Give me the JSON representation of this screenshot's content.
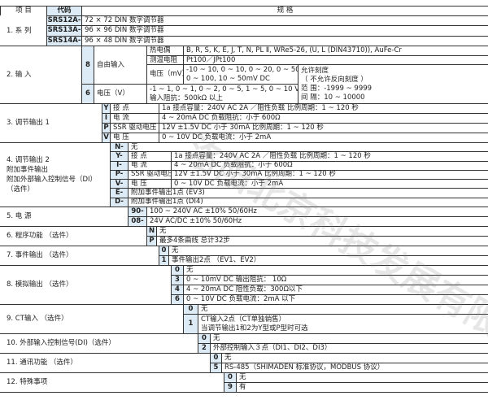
{
  "header": {
    "item": "项 目",
    "code": "代码",
    "spec": "规 格"
  },
  "s1": {
    "label": "1. 系 列",
    "rows": [
      {
        "code": "SRS12A-",
        "spec": "72 × 72  DIN 数字调节器"
      },
      {
        "code": "SRS13A-",
        "spec": "96 × 96  DIN 数字调节器"
      },
      {
        "code": "SRS14A-",
        "spec": "96 × 48  DIN 数字调节器"
      }
    ]
  },
  "s2": {
    "label": "2. 输 入",
    "r8": {
      "code": "8",
      "name": "自由输入",
      "tc": "热电偶",
      "tc_val": "B, R, S, K, E, J, T, N, PL Ⅱ, WRe5-26, (U, L (DIN43710)), AuFe-Cr",
      "rtd": "测温电阻",
      "rtd_val": "Pt100／JPt100",
      "mv": "电压（mV）",
      "mv_val1": "-10 ~ 10, 0 ~ 10, 0 ~ 20, 0 ~ 50,",
      "mv_val2": "0 ~ 100, 10 ~ 50mV DC"
    },
    "scale": [
      "允许刻度",
      "（ 不允许反向刻度 ）",
      "范 围：-1999 ~ 9999",
      "间 隔：10 ~ 10000"
    ],
    "r6": {
      "code": "6",
      "name": "电压（V）",
      "val1": "-1 ~ 1, 0 ~ 1, 0 ~ 2, 0 ~ 5, 1 ~ 5, 0 ~ 10 V DC",
      "val2": "输入阻抗：500kΩ 以上"
    }
  },
  "s3": {
    "label": "3. 调节输出 1",
    "rows": [
      {
        "code": "Y",
        "name": "接 点",
        "val": "1a  接点容量：240V AC  2A ／阻性负载  比例周期：1 ~ 120 秒"
      },
      {
        "code": "I",
        "name": "电 流",
        "val": "4 ~ 20mA DC  负载阻抗：小于 600Ω"
      },
      {
        "code": "P",
        "name": "SSR 驱动电压",
        "val": "12V ±1.5V DC  小于 30mA   比例周期：1 ~ 120 秒"
      },
      {
        "code": "V",
        "name": "电 压",
        "val": "0 ~ 10V DC  负载电流：小于 2mA"
      }
    ]
  },
  "s4": {
    "label": [
      "4. 调节输出 2",
      "附加事件输出",
      "附加外部输入控制信号（DI）",
      "（选件）"
    ],
    "rows": [
      {
        "code": "N-",
        "val": "无"
      },
      {
        "code": "Y-",
        "name": "接 点",
        "val": "1a  接点容量：240V AC  2A ／阻性负载  比例周期：1 ~ 120 秒"
      },
      {
        "code": "I-",
        "name": "电 流",
        "val": "4 ~ 20mA DC  负载阻抗：小于 600Ω"
      },
      {
        "code": "P-",
        "name": "SSR 驱动电压",
        "val": "12V ±1.5V DC  小于 30mA   比例周期：1 ~ 120 秒"
      },
      {
        "code": "V-",
        "name": "电 压",
        "val": "0 ~ 10V DC  负载电流：小于 2mA"
      },
      {
        "code": "E-",
        "val": "附加事件输出1点    (EV3)"
      },
      {
        "code": "D-",
        "val": "附加事件输出1点    (DI4)"
      }
    ]
  },
  "s5": {
    "label": "5. 电 源",
    "rows": [
      {
        "code": "90-",
        "val": "100 ~ 240V AC ±10%   50/60Hz"
      },
      {
        "code": "08-",
        "val": "24V AC/DC      ±10%   50/60Hz"
      }
    ]
  },
  "s6": {
    "label": "6. 程序功能   （选件）",
    "rows": [
      {
        "code": "N",
        "val": "无"
      },
      {
        "code": "P",
        "val": "最多4条曲线 总计32步"
      }
    ]
  },
  "s7": {
    "label": "7. 事件输出   （选件）",
    "rows": [
      {
        "code": "0",
        "val": "无"
      },
      {
        "code": "1",
        "val": "事件输出2点  （EV1、EV2）"
      }
    ]
  },
  "s8": {
    "label": "8. 模拟输出   （选件）",
    "rows": [
      {
        "code": "0",
        "val": "无"
      },
      {
        "code": "3",
        "val": "0 ~ 10mV DC   输出阻抗：  10Ω"
      },
      {
        "code": "4",
        "val": "4 ~ 20mA DC   阻性负载：300Ω以下"
      },
      {
        "code": "6",
        "val": "0 ~   10V DC   负载电流：2mA 以下"
      }
    ]
  },
  "s9": {
    "label": "9. CT输入    （选件）",
    "rows": [
      {
        "code": "0",
        "val": "无"
      },
      {
        "code": "1",
        "val": "CT输入2点（CT单独销售）",
        "val2": "当调节输出1和2为Y型或P型时可选"
      }
    ]
  },
  "s10": {
    "label": "10. 外部输入控制信号(DI)（选件）",
    "rows": [
      {
        "code": "0",
        "val": "无"
      },
      {
        "code": "2",
        "val": "外部控制输入３点（DI1、DI2、DI3）"
      }
    ]
  },
  "s11": {
    "label": "11. 通讯功能  （选件）",
    "rows": [
      {
        "code": "0",
        "val": "无"
      },
      {
        "code": "5",
        "val": "RS-485（SHIMADEN 标准协议，MODBUS 协议）"
      }
    ]
  },
  "s12": {
    "label": "12. 特殊事项",
    "rows": [
      {
        "code": "0",
        "val": "无"
      },
      {
        "code": "9",
        "val": "有"
      }
    ]
  },
  "watermark": "洛阳北京科技发展有限公司"
}
